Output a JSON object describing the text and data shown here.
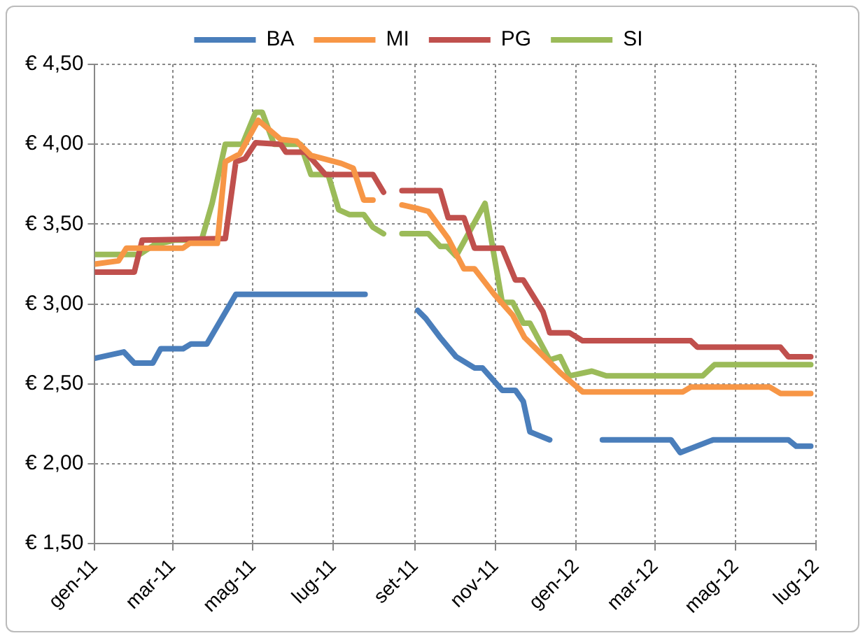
{
  "chart_data": {
    "type": "line",
    "legend": "top",
    "grid": true,
    "marker": "none",
    "line_style": "solid",
    "xlim": [
      "2011-01-01",
      "2012-07-01"
    ],
    "xticks": [
      {
        "value": "2011-01-01",
        "label": "gen-11"
      },
      {
        "value": "2011-03-01",
        "label": "mar-11"
      },
      {
        "value": "2011-05-01",
        "label": "mag-11"
      },
      {
        "value": "2011-07-01",
        "label": "lug-11"
      },
      {
        "value": "2011-09-01",
        "label": "set-11"
      },
      {
        "value": "2011-11-01",
        "label": "nov-11"
      },
      {
        "value": "2012-01-01",
        "label": "gen-12"
      },
      {
        "value": "2012-03-01",
        "label": "mar-12"
      },
      {
        "value": "2012-05-01",
        "label": "mag-12"
      },
      {
        "value": "2012-07-01",
        "label": "lug-12"
      }
    ],
    "ylim": [
      1.5,
      4.5
    ],
    "yticks": [
      {
        "value": 1.5,
        "label": "€ 1,50"
      },
      {
        "value": 2,
        "label": "€ 2,00"
      },
      {
        "value": 2.5,
        "label": "€ 2,50"
      },
      {
        "value": 3,
        "label": "€ 3,00"
      },
      {
        "value": 3.5,
        "label": "€ 3,50"
      },
      {
        "value": 4,
        "label": "€ 4,00"
      },
      {
        "value": 4.5,
        "label": "€ 4,50"
      }
    ],
    "series": [
      {
        "name": "BA",
        "color": "#4a7ebb",
        "x": [
          "2011-01-01",
          "2011-01-23",
          "2011-01-31",
          "2011-02-14",
          "2011-02-20",
          "2011-03-09",
          "2011-03-15",
          "2011-03-27",
          "2011-04-18",
          "2011-07-25",
          "2011-08-15",
          "2011-09-03",
          "2011-09-09",
          "2011-09-20",
          "2011-10-02",
          "2011-10-16",
          "2011-10-22",
          "2011-11-06",
          "2011-11-16",
          "2011-11-22",
          "2011-11-27",
          "2011-12-12",
          "2011-12-30",
          "2012-01-21",
          "2012-03-13",
          "2012-03-20",
          "2012-04-14",
          "2012-06-10",
          "2012-06-16",
          "2012-06-27"
        ],
        "values": [
          2.66,
          2.7,
          2.63,
          2.63,
          2.72,
          2.72,
          2.75,
          2.75,
          3.06,
          3.06,
          null,
          2.96,
          2.91,
          2.79,
          2.67,
          2.6,
          2.6,
          2.46,
          2.46,
          2.39,
          2.2,
          2.15,
          null,
          2.15,
          2.15,
          2.07,
          2.15,
          2.15,
          2.11,
          2.11
        ]
      },
      {
        "name": "MI",
        "color": "#f79646",
        "x": [
          "2011-01-01",
          "2011-01-19",
          "2011-01-25",
          "2011-03-09",
          "2011-03-14",
          "2011-04-04",
          "2011-04-10",
          "2011-04-21",
          "2011-05-05",
          "2011-05-22",
          "2011-06-03",
          "2011-06-14",
          "2011-07-07",
          "2011-07-16",
          "2011-07-24",
          "2011-07-31",
          "2011-08-15",
          "2011-08-22",
          "2011-09-02",
          "2011-09-11",
          "2011-09-26",
          "2011-10-08",
          "2011-10-16",
          "2011-10-31",
          "2011-11-14",
          "2011-11-23",
          "2011-12-09",
          "2011-12-20",
          "2012-01-06",
          "2012-03-22",
          "2012-03-28",
          "2012-05-27",
          "2012-06-04",
          "2012-06-27"
        ],
        "values": [
          3.25,
          3.27,
          3.35,
          3.35,
          3.38,
          3.38,
          3.89,
          3.94,
          4.15,
          4.03,
          4.02,
          3.93,
          3.88,
          3.85,
          3.65,
          3.65,
          null,
          3.62,
          3.6,
          3.58,
          3.41,
          3.22,
          3.22,
          3.06,
          2.93,
          2.79,
          2.66,
          2.57,
          2.45,
          2.45,
          2.48,
          2.48,
          2.44,
          2.44
        ]
      },
      {
        "name": "PG",
        "color": "#c0504d",
        "x": [
          "2011-01-01",
          "2011-01-31",
          "2011-02-06",
          "2011-04-10",
          "2011-04-18",
          "2011-04-25",
          "2011-05-03",
          "2011-05-22",
          "2011-05-26",
          "2011-06-10",
          "2011-06-25",
          "2011-07-31",
          "2011-08-08",
          "2011-08-15",
          "2011-08-22",
          "2011-09-20",
          "2011-09-26",
          "2011-10-08",
          "2011-10-16",
          "2011-11-06",
          "2011-11-16",
          "2011-11-22",
          "2011-12-07",
          "2011-12-12",
          "2011-12-27",
          "2012-01-06",
          "2012-03-28",
          "2012-04-02",
          "2012-06-04",
          "2012-06-10",
          "2012-06-27"
        ],
        "values": [
          3.2,
          3.2,
          3.4,
          3.41,
          3.89,
          3.91,
          4.01,
          4.0,
          3.95,
          3.95,
          3.81,
          3.81,
          3.7,
          null,
          3.71,
          3.71,
          3.54,
          3.54,
          3.35,
          3.35,
          3.15,
          3.15,
          2.95,
          2.82,
          2.82,
          2.77,
          2.77,
          2.73,
          2.73,
          2.67,
          2.67
        ]
      },
      {
        "name": "SI",
        "color": "#9bbb59",
        "x": [
          "2011-01-01",
          "2011-02-04",
          "2011-02-15",
          "2011-03-03",
          "2011-03-23",
          "2011-03-31",
          "2011-04-10",
          "2011-04-23",
          "2011-05-03",
          "2011-05-08",
          "2011-05-17",
          "2011-06-06",
          "2011-06-14",
          "2011-06-27",
          "2011-07-05",
          "2011-07-13",
          "2011-07-24",
          "2011-07-31",
          "2011-08-08",
          "2011-08-15",
          "2011-08-22",
          "2011-09-11",
          "2011-09-20",
          "2011-09-25",
          "2011-10-02",
          "2011-10-24",
          "2011-11-06",
          "2011-11-14",
          "2011-11-22",
          "2011-11-27",
          "2011-12-12",
          "2011-12-20",
          "2011-12-27",
          "2012-01-13",
          "2012-01-24",
          "2012-04-06",
          "2012-04-15",
          "2012-06-27"
        ],
        "values": [
          3.31,
          3.31,
          3.37,
          3.4,
          3.4,
          3.63,
          4.0,
          4.0,
          4.2,
          4.2,
          4.0,
          4.0,
          3.81,
          3.81,
          3.59,
          3.56,
          3.56,
          3.48,
          3.44,
          null,
          3.44,
          3.44,
          3.36,
          3.36,
          3.3,
          3.63,
          3.01,
          3.01,
          2.88,
          2.88,
          2.65,
          2.67,
          2.55,
          2.58,
          2.55,
          2.55,
          2.62,
          2.62
        ]
      }
    ]
  }
}
